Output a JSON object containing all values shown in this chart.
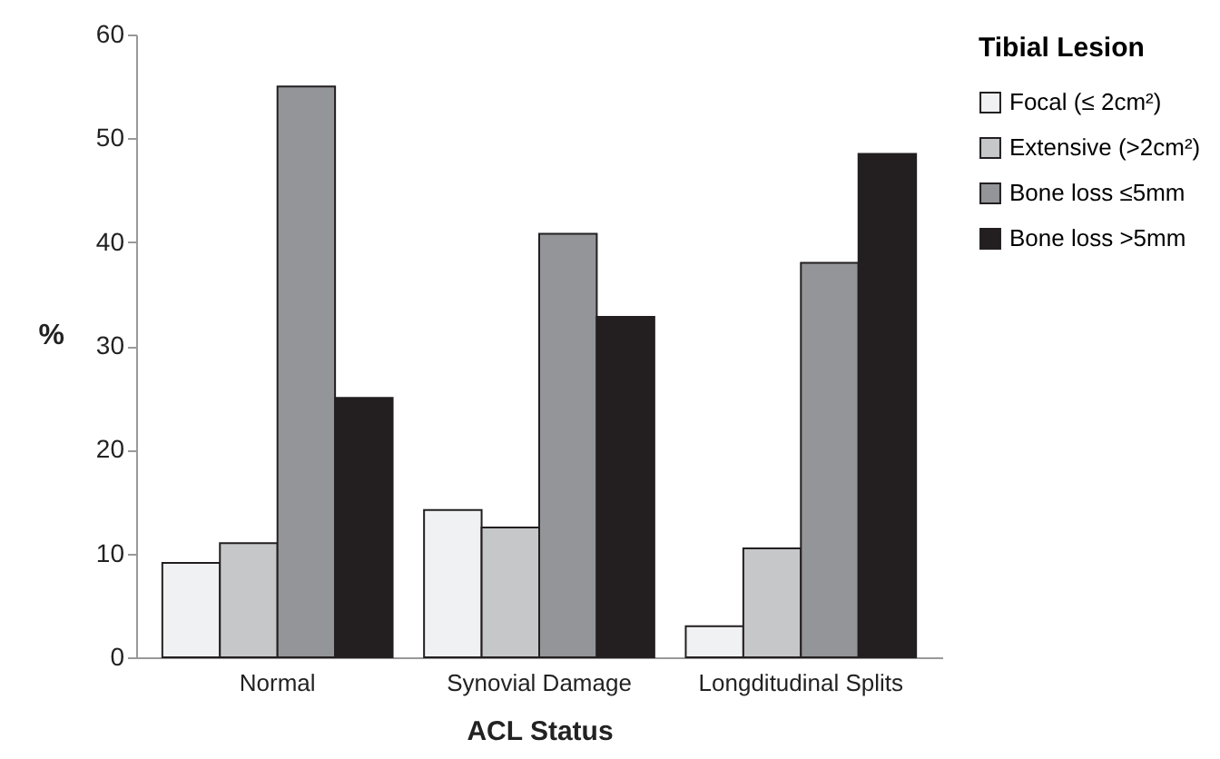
{
  "chart_data": {
    "type": "bar",
    "xlabel": "ACL Status",
    "ylabel": "%",
    "legend_title": "Tibial Lesion",
    "categories": [
      "Normal",
      "Synovial Damage",
      "Longditudinal Splits"
    ],
    "series": [
      {
        "name": "Focal (≤ 2cm²)",
        "color": "#f0f1f3",
        "values": [
          9.1,
          14.2,
          3.0
        ]
      },
      {
        "name": "Extensive (>2cm²)",
        "color": "#c6c7c9",
        "values": [
          11.0,
          12.5,
          10.5
        ]
      },
      {
        "name": "Bone loss ≤5mm",
        "color": "#939598",
        "values": [
          55.0,
          40.8,
          38.0
        ]
      },
      {
        "name": "Bone loss >5mm",
        "color": "#231f20",
        "values": [
          25.0,
          32.8,
          48.5
        ]
      }
    ],
    "ylim": [
      0,
      60
    ],
    "yticks": [
      0,
      10,
      20,
      30,
      40,
      50,
      60
    ],
    "grid": false,
    "legend": "right"
  }
}
